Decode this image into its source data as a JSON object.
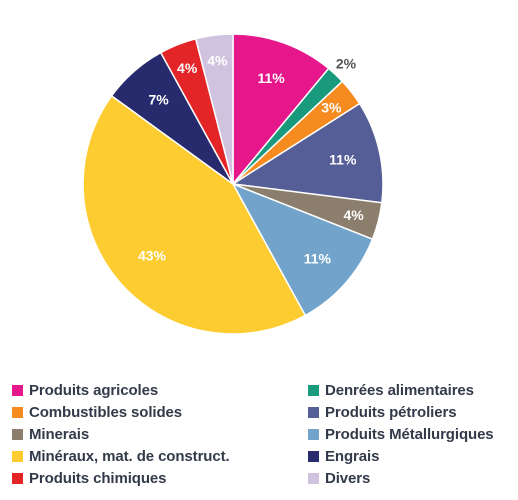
{
  "chart_data": {
    "type": "pie",
    "start_angle_deg": 0,
    "direction": "clockwise",
    "slices": [
      {
        "name": "Produits agricoles",
        "value": 11,
        "label": "11%",
        "color": "#e6168b",
        "label_color": "#ffffff"
      },
      {
        "name": "Denrées alimentaires",
        "value": 2,
        "label": "2%",
        "color": "#1a9a7c",
        "label_color": "#555555"
      },
      {
        "name": "Combustibles solides",
        "value": 3,
        "label": "3%",
        "color": "#f68b1f",
        "label_color": "#ffffff"
      },
      {
        "name": "Produits pétroliers",
        "value": 11,
        "label": "11%",
        "color": "#555e96",
        "label_color": "#ffffff"
      },
      {
        "name": "Minerais",
        "value": 4,
        "label": "4%",
        "color": "#8b7e6c",
        "label_color": "#ffffff"
      },
      {
        "name": "Produits Métallurgiques",
        "value": 11,
        "label": "11%",
        "color": "#72a4cb",
        "label_color": "#ffffff"
      },
      {
        "name": "Minéraux, mat. de construct.",
        "value": 43,
        "label": "43%",
        "color": "#fdcc30",
        "label_color": "#ffffff"
      },
      {
        "name": "Engrais",
        "value": 7,
        "label": "7%",
        "color": "#272a6c",
        "label_color": "#ffffff"
      },
      {
        "name": "Produits chimiques",
        "value": 4,
        "label": "4%",
        "color": "#e42528",
        "label_color": "#ffffff"
      },
      {
        "name": "Divers",
        "value": 4,
        "label": "4%",
        "color": "#cfc3e0",
        "label_color": "#ffffff"
      }
    ],
    "legend": {
      "placement": "bottom",
      "columns": 2,
      "entries": [
        "Produits agricoles",
        "Denrées alimentaires",
        "Combustibles solides",
        "Produits pétroliers",
        "Minerais",
        "Produits Métallurgiques",
        "Minéraux, mat. de construct.",
        "Engrais",
        "Produits chimiques",
        "Divers"
      ]
    }
  }
}
